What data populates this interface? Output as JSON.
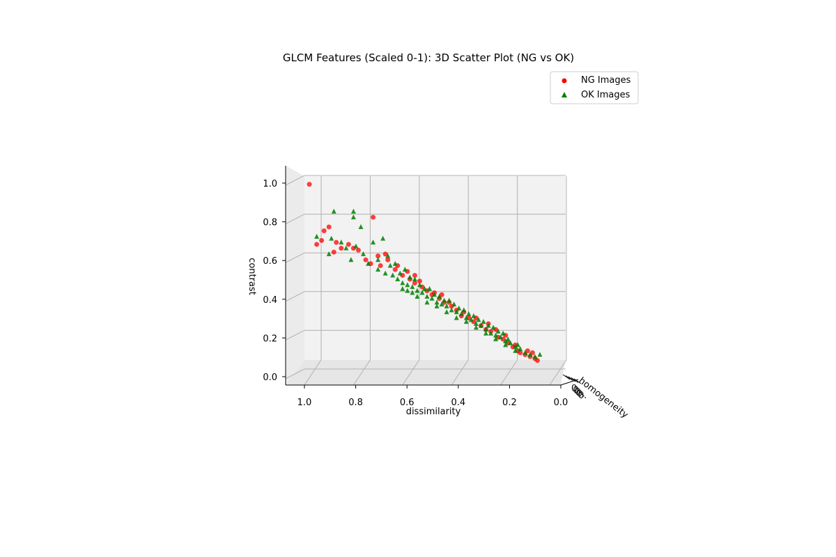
{
  "chart_data": {
    "type": "scatter",
    "projection": "3d",
    "title": "GLCM Features (Scaled 0-1): 3D Scatter Plot (NG vs OK)",
    "xlabel": "dissimilarity",
    "ylabel": "homogeneity",
    "zlabel": "contrast",
    "xlim": [
      0,
      1
    ],
    "zlim": [
      0,
      1
    ],
    "x_ticks": [
      "1.0",
      "0.8",
      "0.6",
      "0.4",
      "0.2",
      "0.0"
    ],
    "z_ticks": [
      "0.0",
      "0.2",
      "0.4",
      "0.6",
      "0.8",
      "1.0"
    ],
    "y_tick_fragment": "0.",
    "grid": true,
    "legend_position": "top-right",
    "colors": {
      "NG": "#ff0000",
      "OK": "#008000",
      "pane": "#f2f2f2",
      "grid": "#b0b0b0"
    },
    "series": [
      {
        "name": "NG Images",
        "marker": "circle",
        "color": "#ff0000",
        "points": [
          [
            0.98,
            0.99
          ],
          [
            0.72,
            0.82
          ],
          [
            0.95,
            0.68
          ],
          [
            0.93,
            0.7
          ],
          [
            0.92,
            0.75
          ],
          [
            0.9,
            0.77
          ],
          [
            0.87,
            0.69
          ],
          [
            0.85,
            0.66
          ],
          [
            0.88,
            0.64
          ],
          [
            0.82,
            0.68
          ],
          [
            0.8,
            0.66
          ],
          [
            0.78,
            0.65
          ],
          [
            0.75,
            0.6
          ],
          [
            0.7,
            0.62
          ],
          [
            0.73,
            0.58
          ],
          [
            0.69,
            0.57
          ],
          [
            0.66,
            0.6
          ],
          [
            0.63,
            0.55
          ],
          [
            0.6,
            0.52
          ],
          [
            0.57,
            0.5
          ],
          [
            0.55,
            0.48
          ],
          [
            0.52,
            0.46
          ],
          [
            0.5,
            0.44
          ],
          [
            0.48,
            0.42
          ],
          [
            0.45,
            0.4
          ],
          [
            0.43,
            0.38
          ],
          [
            0.4,
            0.36
          ],
          [
            0.38,
            0.34
          ],
          [
            0.36,
            0.31
          ],
          [
            0.33,
            0.3
          ],
          [
            0.31,
            0.28
          ],
          [
            0.28,
            0.26
          ],
          [
            0.26,
            0.24
          ],
          [
            0.24,
            0.23
          ],
          [
            0.21,
            0.2
          ],
          [
            0.19,
            0.19
          ],
          [
            0.17,
            0.17
          ],
          [
            0.15,
            0.15
          ],
          [
            0.13,
            0.13
          ],
          [
            0.12,
            0.12
          ],
          [
            0.1,
            0.11
          ],
          [
            0.08,
            0.1
          ],
          [
            0.06,
            0.09
          ],
          [
            0.05,
            0.08
          ],
          [
            0.07,
            0.12
          ],
          [
            0.09,
            0.13
          ],
          [
            0.14,
            0.16
          ],
          [
            0.18,
            0.21
          ],
          [
            0.22,
            0.24
          ],
          [
            0.25,
            0.27
          ],
          [
            0.3,
            0.3
          ],
          [
            0.35,
            0.33
          ],
          [
            0.41,
            0.38
          ],
          [
            0.47,
            0.43
          ],
          [
            0.53,
            0.49
          ],
          [
            0.58,
            0.54
          ],
          [
            0.62,
            0.57
          ],
          [
            0.67,
            0.63
          ],
          [
            0.55,
            0.52
          ],
          [
            0.44,
            0.42
          ]
        ]
      },
      {
        "name": "OK Images",
        "marker": "triangle",
        "color": "#008000",
        "points": [
          [
            0.88,
            0.85
          ],
          [
            0.8,
            0.85
          ],
          [
            0.8,
            0.82
          ],
          [
            0.77,
            0.77
          ],
          [
            0.95,
            0.72
          ],
          [
            0.89,
            0.71
          ],
          [
            0.85,
            0.69
          ],
          [
            0.83,
            0.66
          ],
          [
            0.68,
            0.71
          ],
          [
            0.72,
            0.69
          ],
          [
            0.9,
            0.63
          ],
          [
            0.81,
            0.6
          ],
          [
            0.74,
            0.58
          ],
          [
            0.7,
            0.55
          ],
          [
            0.67,
            0.53
          ],
          [
            0.64,
            0.52
          ],
          [
            0.62,
            0.5
          ],
          [
            0.6,
            0.48
          ],
          [
            0.58,
            0.47
          ],
          [
            0.56,
            0.46
          ],
          [
            0.54,
            0.44
          ],
          [
            0.52,
            0.43
          ],
          [
            0.5,
            0.41
          ],
          [
            0.48,
            0.4
          ],
          [
            0.46,
            0.38
          ],
          [
            0.44,
            0.37
          ],
          [
            0.42,
            0.36
          ],
          [
            0.4,
            0.34
          ],
          [
            0.38,
            0.33
          ],
          [
            0.36,
            0.32
          ],
          [
            0.34,
            0.3
          ],
          [
            0.32,
            0.29
          ],
          [
            0.3,
            0.27
          ],
          [
            0.28,
            0.26
          ],
          [
            0.26,
            0.24
          ],
          [
            0.24,
            0.22
          ],
          [
            0.22,
            0.21
          ],
          [
            0.2,
            0.2
          ],
          [
            0.18,
            0.18
          ],
          [
            0.16,
            0.17
          ],
          [
            0.14,
            0.15
          ],
          [
            0.12,
            0.14
          ],
          [
            0.1,
            0.12
          ],
          [
            0.08,
            0.11
          ],
          [
            0.06,
            0.1
          ],
          [
            0.04,
            0.11
          ],
          [
            0.65,
            0.57
          ],
          [
            0.61,
            0.53
          ],
          [
            0.57,
            0.51
          ],
          [
            0.53,
            0.47
          ],
          [
            0.49,
            0.45
          ],
          [
            0.45,
            0.41
          ],
          [
            0.41,
            0.39
          ],
          [
            0.37,
            0.35
          ],
          [
            0.33,
            0.32
          ],
          [
            0.29,
            0.29
          ],
          [
            0.25,
            0.26
          ],
          [
            0.21,
            0.23
          ],
          [
            0.17,
            0.19
          ],
          [
            0.13,
            0.16
          ],
          [
            0.55,
            0.5
          ],
          [
            0.51,
            0.45
          ],
          [
            0.47,
            0.42
          ],
          [
            0.43,
            0.39
          ],
          [
            0.39,
            0.37
          ],
          [
            0.35,
            0.34
          ],
          [
            0.31,
            0.31
          ],
          [
            0.27,
            0.28
          ],
          [
            0.23,
            0.25
          ],
          [
            0.19,
            0.22
          ],
          [
            0.59,
            0.55
          ],
          [
            0.63,
            0.58
          ],
          [
            0.66,
            0.62
          ],
          [
            0.7,
            0.6
          ],
          [
            0.76,
            0.63
          ],
          [
            0.79,
            0.67
          ],
          [
            0.58,
            0.44
          ],
          [
            0.54,
            0.41
          ],
          [
            0.5,
            0.38
          ],
          [
            0.46,
            0.36
          ],
          [
            0.42,
            0.33
          ],
          [
            0.38,
            0.3
          ],
          [
            0.34,
            0.28
          ],
          [
            0.3,
            0.25
          ],
          [
            0.26,
            0.22
          ],
          [
            0.22,
            0.19
          ],
          [
            0.18,
            0.16
          ],
          [
            0.14,
            0.13
          ],
          [
            0.6,
            0.45
          ],
          [
            0.56,
            0.43
          ]
        ]
      }
    ]
  }
}
